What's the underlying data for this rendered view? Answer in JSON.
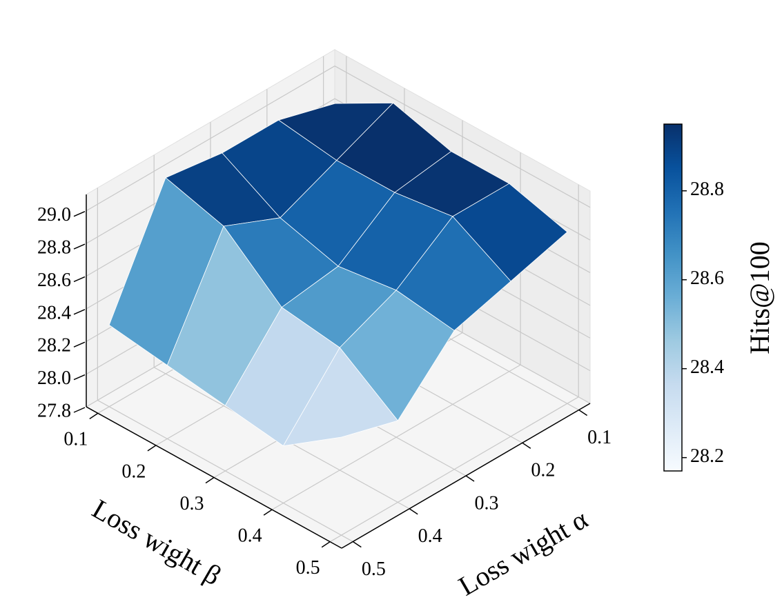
{
  "chart_data": {
    "type": "surface3d",
    "x_label": "Loss wight α",
    "y_label": "Loss wight β",
    "colorbar_label": "Hits@100",
    "x": [
      0.1,
      0.2,
      0.3,
      0.4,
      0.5
    ],
    "y": [
      0.1,
      0.2,
      0.3,
      0.4,
      0.5
    ],
    "z": [
      [
        28.85,
        29.05,
        28.95,
        28.95,
        28.85
      ],
      [
        28.95,
        28.9,
        28.9,
        28.95,
        28.75
      ],
      [
        28.95,
        28.75,
        28.65,
        28.7,
        28.65
      ],
      [
        29.0,
        28.9,
        28.6,
        28.55,
        28.3
      ],
      [
        28.3,
        28.25,
        28.2,
        28.15,
        28.4
      ]
    ],
    "xlim": [
      0.08,
      0.52
    ],
    "ylim": [
      0.08,
      0.52
    ],
    "zlim": [
      27.8,
      29.1
    ],
    "xticks": [
      0.1,
      0.2,
      0.3,
      0.4,
      0.5
    ],
    "yticks": [
      0.1,
      0.2,
      0.3,
      0.4,
      0.5
    ],
    "zticks": [
      27.8,
      {
        "value": 28,
        "label": "28.0"
      },
      28.2,
      28.4,
      28.6,
      28.8,
      {
        "value": 29,
        "label": "29.0"
      }
    ],
    "colormap": [
      "#f7fbff",
      "#deebf7",
      "#c6dbef",
      "#9ecae1",
      "#6baed6",
      "#4292c6",
      "#2171b5",
      "#08519c",
      "#08306b"
    ],
    "clim": [
      28.17,
      28.95
    ],
    "cticks": [
      28.2,
      28.4,
      28.6,
      28.8
    ],
    "grid": true
  }
}
